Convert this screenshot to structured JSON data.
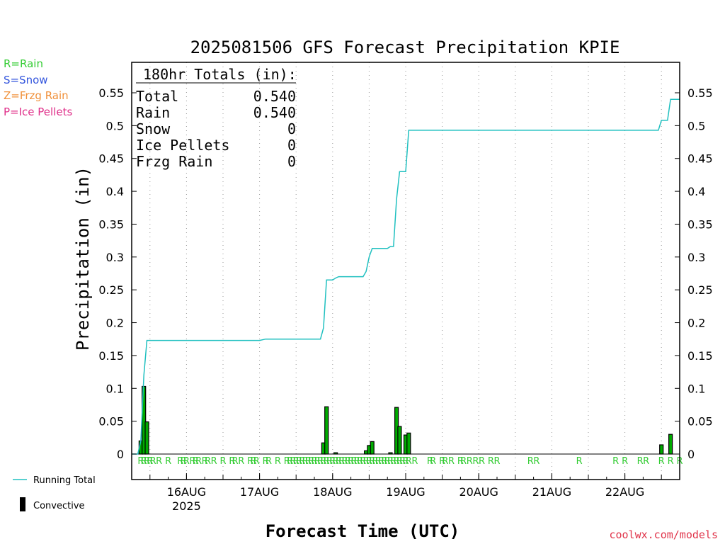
{
  "legend_codes": [
    {
      "label": "R=Rain",
      "color": "#33cc33"
    },
    {
      "label": "S=Snow",
      "color": "#3355dd"
    },
    {
      "label": "Z=Frzg Rain",
      "color": "#f0903a"
    },
    {
      "label": "P=Ice Pellets",
      "color": "#e0308a"
    }
  ],
  "totals": {
    "header": "180hr Totals (in):",
    "rows": [
      {
        "label": "Total",
        "value": "0.540"
      },
      {
        "label": "Rain",
        "value": "0.540"
      },
      {
        "label": "Snow",
        "value": "0"
      },
      {
        "label": "Ice Pellets",
        "value": "0"
      },
      {
        "label": "Frzg Rain",
        "value": "0"
      }
    ]
  },
  "bottom_legend": {
    "running_total": "Running Total",
    "convective": "Convective",
    "running_total_color": "#20c0c0"
  },
  "credit": "coolwx.com/models",
  "colors": {
    "rain": "#33cc33",
    "bar_outline": "#000000",
    "bar_fill": "#00aa00"
  },
  "chart_data": {
    "type": "bar",
    "title": "2025081506 GFS Forecast Precipitation KPIE",
    "xlabel": "Forecast Time (UTC)",
    "ylabel": "Precipitation (in)",
    "ylim": [
      0,
      0.59
    ],
    "yticks": [
      0,
      0.05,
      0.1,
      0.15,
      0.2,
      0.25,
      0.3,
      0.35,
      0.4,
      0.45,
      0.5,
      0.55
    ],
    "ytick_labels": [
      "0",
      "0.05",
      "0.1",
      "0.15",
      "0.2",
      "0.25",
      "0.3",
      "0.35",
      "0.4",
      "0.45",
      "0.5",
      "0.55"
    ],
    "xlim_hours": [
      0,
      180
    ],
    "x_ticks": [
      {
        "hour": 18,
        "label": "16AUG",
        "sublabel": "2025"
      },
      {
        "hour": 42,
        "label": "17AUG",
        "sublabel": ""
      },
      {
        "hour": 66,
        "label": "18AUG",
        "sublabel": ""
      },
      {
        "hour": 90,
        "label": "19AUG",
        "sublabel": ""
      },
      {
        "hour": 114,
        "label": "20AUG",
        "sublabel": ""
      },
      {
        "hour": 138,
        "label": "21AUG",
        "sublabel": ""
      },
      {
        "hour": 162,
        "label": "22AUG",
        "sublabel": ""
      }
    ],
    "grid_x": "dotted",
    "series": [
      {
        "name": "Running Total",
        "type": "line",
        "points": [
          [
            0,
            0
          ],
          [
            2,
            0
          ],
          [
            3,
            0.02
          ],
          [
            4,
            0.12
          ],
          [
            5,
            0.173
          ],
          [
            6,
            0.173
          ],
          [
            42,
            0.173
          ],
          [
            44,
            0.175
          ],
          [
            62,
            0.175
          ],
          [
            63,
            0.192
          ],
          [
            64,
            0.265
          ],
          [
            66,
            0.265
          ],
          [
            67,
            0.268
          ],
          [
            68,
            0.27
          ],
          [
            76,
            0.27
          ],
          [
            77,
            0.278
          ],
          [
            78,
            0.3
          ],
          [
            79,
            0.313
          ],
          [
            84,
            0.313
          ],
          [
            85,
            0.316
          ],
          [
            86,
            0.316
          ],
          [
            87,
            0.388
          ],
          [
            88,
            0.43
          ],
          [
            90,
            0.43
          ],
          [
            91,
            0.493
          ],
          [
            173,
            0.493
          ],
          [
            174,
            0.508
          ],
          [
            176,
            0.508
          ],
          [
            177,
            0.54
          ],
          [
            180,
            0.54
          ]
        ]
      },
      {
        "name": "Convective",
        "type": "bar",
        "points": [
          [
            3,
            0.02
          ],
          [
            4,
            0.103
          ],
          [
            5,
            0.049
          ],
          [
            63,
            0.017
          ],
          [
            64,
            0.072
          ],
          [
            67,
            0.002
          ],
          [
            77,
            0.005
          ],
          [
            78,
            0.013
          ],
          [
            79,
            0.019
          ],
          [
            85,
            0.002
          ],
          [
            87,
            0.071
          ],
          [
            88,
            0.042
          ],
          [
            90,
            0.029
          ],
          [
            91,
            0.032
          ],
          [
            174,
            0.014
          ],
          [
            177,
            0.03
          ]
        ]
      }
    ],
    "ptype_hours": [
      3,
      4,
      5,
      6,
      7,
      9,
      12,
      16,
      17,
      18,
      20,
      21,
      22,
      24,
      25,
      27,
      30,
      33,
      34,
      36,
      39,
      40,
      41,
      44,
      45,
      48,
      51,
      52,
      53,
      54,
      55,
      56,
      57,
      58,
      59,
      60,
      61,
      62,
      63,
      64,
      65,
      66,
      67,
      68,
      69,
      70,
      71,
      72,
      73,
      74,
      75,
      76,
      77,
      78,
      79,
      80,
      81,
      82,
      83,
      84,
      85,
      86,
      87,
      88,
      89,
      90,
      91,
      93,
      98,
      99,
      102,
      103,
      105,
      108,
      109,
      111,
      113,
      115,
      118,
      120,
      131,
      133,
      147,
      159,
      162,
      167,
      169,
      174,
      177,
      180
    ]
  }
}
